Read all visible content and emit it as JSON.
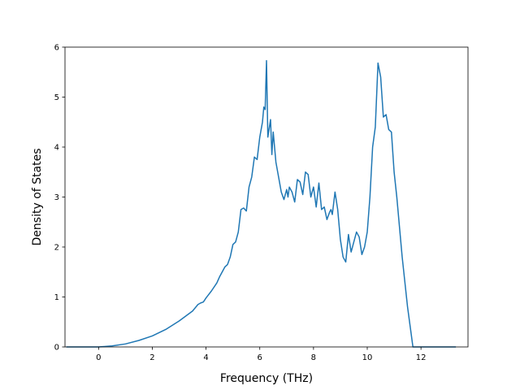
{
  "chart_data": {
    "type": "line",
    "xlabel": "Frequency (THz)",
    "ylabel": "Density of States",
    "xlim": [
      -1.25,
      13.75
    ],
    "ylim": [
      0,
      6
    ],
    "x_ticks": [
      0,
      2,
      4,
      6,
      8,
      10,
      12
    ],
    "y_ticks": [
      0,
      1,
      2,
      3,
      4,
      5,
      6
    ],
    "grid": false,
    "line_color": "#1f77b4",
    "series": [
      {
        "x": [
          -1.2,
          -0.8,
          -0.4,
          0.0,
          0.5,
          1.0,
          1.5,
          2.0,
          2.5,
          3.0,
          3.5,
          3.7,
          3.8,
          3.9,
          4.0,
          4.2,
          4.4,
          4.5,
          4.6,
          4.7,
          4.8,
          4.9,
          5.0,
          5.1,
          5.2,
          5.3,
          5.4,
          5.5,
          5.6,
          5.7,
          5.8,
          5.9,
          6.0,
          6.1,
          6.15,
          6.2,
          6.25,
          6.3,
          6.4,
          6.45,
          6.5,
          6.55,
          6.6,
          6.7,
          6.8,
          6.9,
          7.0,
          7.05,
          7.1,
          7.2,
          7.3,
          7.4,
          7.5,
          7.6,
          7.7,
          7.8,
          7.9,
          8.0,
          8.1,
          8.2,
          8.3,
          8.4,
          8.5,
          8.6,
          8.65,
          8.7,
          8.8,
          8.9,
          9.0,
          9.1,
          9.2,
          9.3,
          9.4,
          9.5,
          9.6,
          9.7,
          9.8,
          9.9,
          10.0,
          10.1,
          10.2,
          10.3,
          10.4,
          10.5,
          10.6,
          10.7,
          10.8,
          10.9,
          11.0,
          11.1,
          11.2,
          11.3,
          11.4,
          11.5,
          11.6,
          11.7,
          11.8,
          11.9,
          12.0,
          12.05,
          12.3,
          12.8,
          13.3
        ],
        "y": [
          0,
          0,
          0,
          0,
          0.02,
          0.06,
          0.13,
          0.22,
          0.35,
          0.52,
          0.72,
          0.85,
          0.88,
          0.9,
          0.98,
          1.12,
          1.28,
          1.4,
          1.5,
          1.6,
          1.65,
          1.8,
          2.05,
          2.1,
          2.3,
          2.75,
          2.78,
          2.72,
          3.2,
          3.4,
          3.8,
          3.75,
          4.2,
          4.5,
          4.8,
          4.75,
          5.73,
          4.2,
          4.55,
          3.85,
          4.3,
          4.0,
          3.7,
          3.4,
          3.1,
          2.95,
          3.15,
          3.0,
          3.2,
          3.1,
          2.9,
          3.35,
          3.3,
          3.05,
          3.5,
          3.45,
          3.0,
          3.2,
          2.8,
          3.28,
          2.75,
          2.8,
          2.55,
          2.7,
          2.75,
          2.65,
          3.1,
          2.75,
          2.15,
          1.8,
          1.7,
          2.25,
          1.9,
          2.1,
          2.3,
          2.2,
          1.85,
          2.0,
          2.3,
          3.0,
          4.0,
          4.4,
          5.68,
          5.4,
          4.6,
          4.65,
          4.35,
          4.3,
          3.5,
          3.0,
          2.4,
          1.8,
          1.3,
          0.8,
          0.4,
          0,
          0,
          0,
          0,
          0,
          0,
          0,
          0
        ]
      }
    ]
  }
}
